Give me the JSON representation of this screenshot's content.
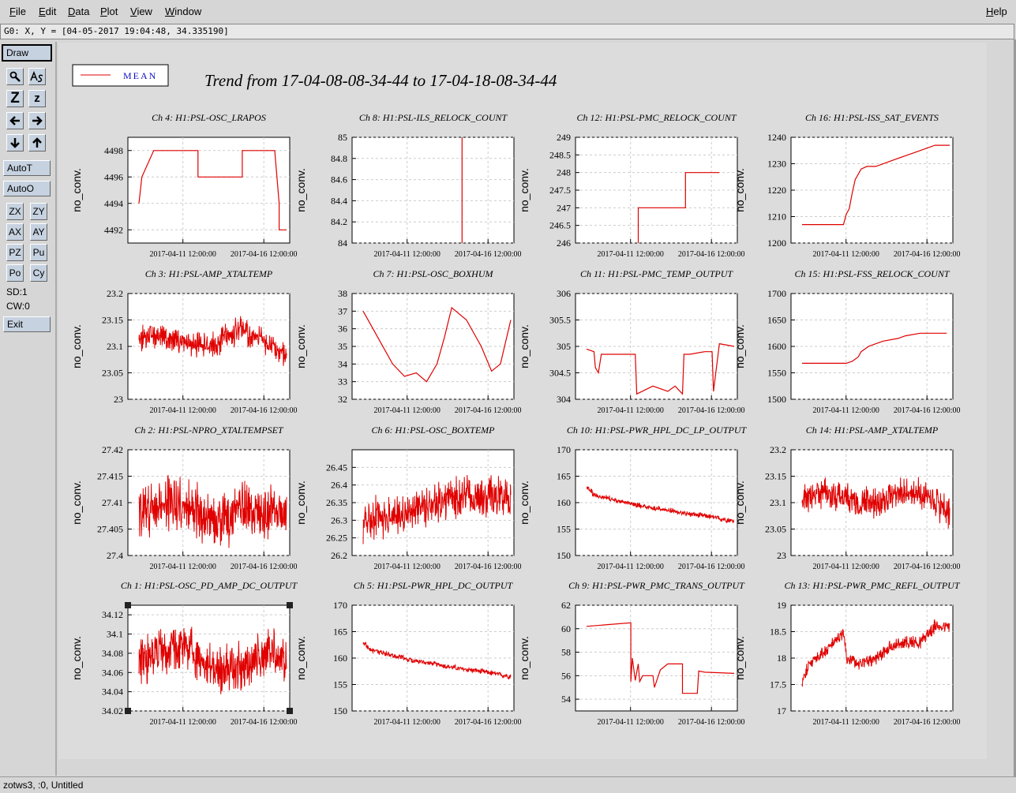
{
  "menubar": {
    "items": [
      {
        "label": "File",
        "underline": "F",
        "rest": "ile"
      },
      {
        "label": "Edit",
        "underline": "E",
        "rest": "dit"
      },
      {
        "label": "Data",
        "underline": "D",
        "rest": "ata"
      },
      {
        "label": "Plot",
        "underline": "P",
        "rest": "lot"
      },
      {
        "label": "View",
        "underline": "V",
        "rest": "iew"
      },
      {
        "label": "Window",
        "underline": "W",
        "rest": "indow"
      }
    ],
    "help": {
      "label": "Help",
      "underline": "H",
      "rest": "elp"
    }
  },
  "coord_readout": "G0: X, Y = [04-05-2017 19:04:48, 34.335190]",
  "toolbox": {
    "draw": "Draw",
    "zoom_z_big": "Z",
    "zoom_z_small": "z",
    "autot": "AutoT",
    "autoo": "AutoO",
    "zx": "ZX",
    "zy": "ZY",
    "ax": "AX",
    "ay": "AY",
    "pz": "PZ",
    "pu": "Pu",
    "po": "Po",
    "cy": "Cy",
    "sd": "SD:1",
    "cw": "CW:0",
    "exit": "Exit"
  },
  "status": "zotws3, :0, Untitled",
  "figure": {
    "legend_label": "MEAN",
    "title": "Trend from 17-04-08-08-34-44 to 17-04-18-08-34-44"
  },
  "chart_data": [
    {
      "type": "line",
      "title": "Ch 4: H1:PSL-OSC_LRAPOS",
      "ylabel": "no_conv.",
      "ylim": [
        4491,
        4499
      ],
      "yticks": [
        4492,
        4494,
        4496,
        4498
      ],
      "xticks": [
        "2017-04-11 12:00:00",
        "2017-04-16 12:00:00"
      ],
      "x": [
        0.0,
        0.02,
        0.02,
        0.1,
        0.4,
        0.4,
        0.7,
        0.7,
        0.92,
        0.95,
        0.95,
        1.0
      ],
      "y": [
        4494,
        4496,
        4496,
        4498,
        4498,
        4496,
        4496,
        4498,
        4498,
        4494,
        4492,
        4492
      ]
    },
    {
      "type": "line",
      "title": "Ch 8: H1:PSL-ILS_RELOCK_COUNT",
      "ylabel": "no_conv.",
      "ylim": [
        84,
        85
      ],
      "yticks": [
        84,
        84.2,
        84.4,
        84.6,
        84.8,
        85
      ],
      "xticks": [
        "2017-04-11 12:00:00",
        "2017-04-16 12:00:00"
      ],
      "x": [
        0.67,
        0.67
      ],
      "y": [
        84,
        85
      ]
    },
    {
      "type": "line",
      "title": "Ch 12: H1:PSL-PMC_RELOCK_COUNT",
      "ylabel": "no_conv.",
      "ylim": [
        246,
        249
      ],
      "yticks": [
        246,
        246.5,
        247,
        247.5,
        248,
        248.5,
        249
      ],
      "xticks": [
        "2017-04-11 12:00:00",
        "2017-04-16 12:00:00"
      ],
      "x": [
        0.35,
        0.35,
        0.67,
        0.67,
        0.9
      ],
      "y": [
        246,
        247,
        247,
        248,
        248
      ]
    },
    {
      "type": "line",
      "title": "Ch 16: H1:PSL-ISS_SAT_EVENTS",
      "ylabel": "no_conv.",
      "ylim": [
        1200,
        1240
      ],
      "yticks": [
        1200,
        1210,
        1220,
        1230,
        1240
      ],
      "xticks": [
        "2017-04-11 12:00:00",
        "2017-04-16 12:00:00"
      ],
      "x": [
        0.0,
        0.28,
        0.3,
        0.32,
        0.34,
        0.36,
        0.38,
        0.4,
        0.44,
        0.5,
        0.6,
        0.7,
        0.8,
        0.9,
        1.0
      ],
      "y": [
        1207,
        1207,
        1211,
        1213,
        1219,
        1224,
        1226,
        1228,
        1229,
        1229,
        1231,
        1233,
        1235,
        1237,
        1237
      ]
    },
    {
      "type": "line",
      "title": "Ch 3: H1:PSL-AMP_XTALTEMP",
      "ylabel": "no_conv.",
      "ylim": [
        23,
        23.2
      ],
      "yticks": [
        23,
        23.05,
        23.1,
        23.15,
        23.2
      ],
      "xticks": [
        "2017-04-11 12:00:00",
        "2017-04-16 12:00:00"
      ],
      "noisy": true,
      "noise": 0.03,
      "x": [
        0,
        0.1,
        0.3,
        0.5,
        0.6,
        0.7,
        0.85,
        0.95,
        1
      ],
      "y": [
        23.11,
        23.12,
        23.11,
        23.1,
        23.12,
        23.13,
        23.11,
        23.09,
        23.08
      ]
    },
    {
      "type": "line",
      "title": "Ch 7: H1:PSL-OSC_BOXHUM",
      "ylabel": "no_conv.",
      "ylim": [
        32,
        38
      ],
      "yticks": [
        32,
        33,
        34,
        35,
        36,
        37,
        38
      ],
      "xticks": [
        "2017-04-11 12:00:00",
        "2017-04-16 12:00:00"
      ],
      "x": [
        0,
        0.1,
        0.2,
        0.28,
        0.36,
        0.43,
        0.5,
        0.55,
        0.6,
        0.7,
        0.8,
        0.87,
        0.93,
        1
      ],
      "y": [
        37,
        35.5,
        34,
        33.3,
        33.5,
        33,
        34,
        35.5,
        37.2,
        36.5,
        35,
        33.6,
        34,
        36.5
      ]
    },
    {
      "type": "line",
      "title": "Ch 11: H1:PSL-PMC_TEMP_OUTPUT",
      "ylabel": "no_conv.",
      "ylim": [
        304,
        306
      ],
      "yticks": [
        304,
        304.5,
        305,
        305.5,
        306
      ],
      "xticks": [
        "2017-04-11 12:00:00",
        "2017-04-16 12:00:00"
      ],
      "x": [
        0,
        0.05,
        0.06,
        0.08,
        0.1,
        0.3,
        0.33,
        0.34,
        0.45,
        0.55,
        0.6,
        0.65,
        0.66,
        0.7,
        0.8,
        0.85,
        0.86,
        0.9,
        1
      ],
      "y": [
        304.95,
        304.9,
        304.6,
        304.5,
        304.85,
        304.85,
        304.85,
        304.1,
        304.25,
        304.15,
        304.25,
        304.1,
        304.85,
        304.85,
        304.9,
        304.9,
        304.15,
        305.05,
        305.0
      ]
    },
    {
      "type": "line",
      "title": "Ch 15: H1:PSL-FSS_RELOCK_COUNT",
      "ylabel": "no_conv.",
      "ylim": [
        1500,
        1700
      ],
      "yticks": [
        1500,
        1550,
        1600,
        1650,
        1700
      ],
      "xticks": [
        "2017-04-11 12:00:00",
        "2017-04-16 12:00:00"
      ],
      "x": [
        0,
        0.3,
        0.34,
        0.38,
        0.4,
        0.45,
        0.5,
        0.55,
        0.65,
        0.7,
        0.8,
        0.98
      ],
      "y": [
        1568,
        1568,
        1572,
        1580,
        1590,
        1600,
        1605,
        1610,
        1615,
        1620,
        1625,
        1625
      ]
    },
    {
      "type": "line",
      "title": "Ch 2: H1:PSL-NPRO_XTALTEMPSET",
      "ylabel": "no_conv.",
      "ylim": [
        27.4,
        27.42
      ],
      "yticks": [
        27.4,
        27.405,
        27.41,
        27.415,
        27.42
      ],
      "xticks": [
        "2017-04-11 12:00:00",
        "2017-04-16 12:00:00"
      ],
      "noisy": true,
      "noise": 0.006,
      "x": [
        0,
        0.15,
        0.3,
        0.45,
        0.55,
        0.7,
        0.85,
        1
      ],
      "y": [
        27.408,
        27.41,
        27.41,
        27.407,
        27.406,
        27.409,
        27.408,
        27.409
      ]
    },
    {
      "type": "line",
      "title": "Ch 6: H1:PSL-OSC_BOXTEMP",
      "ylabel": "no_conv.",
      "ylim": [
        26.2,
        26.5
      ],
      "yticks": [
        26.2,
        26.25,
        26.3,
        26.35,
        26.4,
        26.45
      ],
      "xticks": [
        "2017-04-11 12:00:00",
        "2017-04-16 12:00:00"
      ],
      "noisy": true,
      "noise": 0.07,
      "x": [
        0,
        0.2,
        0.35,
        0.5,
        0.6,
        0.75,
        0.9,
        1
      ],
      "y": [
        26.3,
        26.31,
        26.33,
        26.35,
        26.37,
        26.36,
        26.37,
        26.36
      ]
    },
    {
      "type": "line",
      "title": "Ch 10: H1:PSL-PWR_HPL_DC_LP_OUTPUT",
      "ylabel": "no_conv.",
      "ylim": [
        150,
        170
      ],
      "yticks": [
        150,
        155,
        160,
        165,
        170
      ],
      "xticks": [
        "2017-04-11 12:00:00",
        "2017-04-16 12:00:00"
      ],
      "noisy": true,
      "noise": 0.6,
      "x": [
        0,
        0.05,
        0.2,
        0.35,
        0.5,
        0.65,
        0.8,
        1
      ],
      "y": [
        163,
        161.5,
        160.5,
        159.5,
        158.8,
        158,
        157.5,
        156.5
      ]
    },
    {
      "type": "line",
      "title": "Ch 14: H1:PSL-AMP_XTALTEMP",
      "ylabel": "no_conv.",
      "ylim": [
        23,
        23.2
      ],
      "yticks": [
        23,
        23.05,
        23.1,
        23.15,
        23.2
      ],
      "xticks": [
        "2017-04-11 12:00:00",
        "2017-04-16 12:00:00"
      ],
      "noisy": true,
      "noise": 0.035,
      "x": [
        0,
        0.1,
        0.3,
        0.5,
        0.6,
        0.75,
        0.85,
        0.95,
        1
      ],
      "y": [
        23.11,
        23.12,
        23.11,
        23.1,
        23.11,
        23.12,
        23.11,
        23.09,
        23.08
      ]
    },
    {
      "type": "line",
      "title": "Ch 1: H1:PSL-OSC_PD_AMP_DC_OUTPUT",
      "ylabel": "no_conv.",
      "ylim": [
        34.02,
        34.13
      ],
      "yticks": [
        34.02,
        34.04,
        34.06,
        34.08,
        34.1,
        34.12
      ],
      "xticks": [
        "2017-04-11 12:00:00",
        "2017-04-16 12:00:00"
      ],
      "noisy": true,
      "noise": 0.03,
      "selected": true,
      "x": [
        0,
        0.15,
        0.3,
        0.45,
        0.6,
        0.75,
        0.9,
        1
      ],
      "y": [
        34.07,
        34.08,
        34.09,
        34.07,
        34.06,
        34.07,
        34.08,
        34.07
      ]
    },
    {
      "type": "line",
      "title": "Ch 5: H1:PSL-PWR_HPL_DC_OUTPUT",
      "ylabel": "no_conv.",
      "ylim": [
        150,
        170
      ],
      "yticks": [
        150,
        155,
        160,
        165,
        170
      ],
      "xticks": [
        "2017-04-11 12:00:00",
        "2017-04-16 12:00:00"
      ],
      "noisy": true,
      "noise": 0.6,
      "x": [
        0,
        0.05,
        0.2,
        0.35,
        0.5,
        0.65,
        0.8,
        1
      ],
      "y": [
        163,
        161.5,
        160.5,
        159.5,
        158.8,
        158,
        157.5,
        156.5
      ]
    },
    {
      "type": "line",
      "title": "Ch 9: H1:PSL-PWR_PMC_TRANS_OUTPUT",
      "ylabel": "no_conv.",
      "ylim": [
        53,
        62
      ],
      "yticks": [
        54,
        56,
        58,
        60,
        62
      ],
      "xticks": [
        "2017-04-11 12:00:00",
        "2017-04-16 12:00:00"
      ],
      "x": [
        0,
        0.3,
        0.3,
        0.31,
        0.33,
        0.35,
        0.36,
        0.38,
        0.45,
        0.46,
        0.5,
        0.55,
        0.6,
        0.65,
        0.65,
        0.66,
        0.75,
        0.76,
        0.8,
        1
      ],
      "y": [
        60.2,
        60.5,
        55.5,
        57.5,
        55.6,
        57,
        55.5,
        56,
        56,
        55,
        56.5,
        57,
        57,
        57,
        54.5,
        54.5,
        54.5,
        56.4,
        56.3,
        56.2
      ]
    },
    {
      "type": "line",
      "title": "Ch 13: H1:PSL-PWR_PMC_REFL_OUTPUT",
      "ylabel": "no_conv.",
      "ylim": [
        17,
        19
      ],
      "yticks": [
        17,
        17.5,
        18,
        18.5,
        19
      ],
      "xticks": [
        "2017-04-11 12:00:00",
        "2017-04-16 12:00:00"
      ],
      "noisy": true,
      "noise": 0.15,
      "x": [
        0,
        0.05,
        0.15,
        0.28,
        0.3,
        0.4,
        0.5,
        0.6,
        0.7,
        0.8,
        0.9,
        1
      ],
      "y": [
        17.5,
        17.9,
        18.1,
        18.5,
        18.0,
        17.9,
        18.0,
        18.2,
        18.3,
        18.3,
        18.6,
        18.6
      ]
    }
  ]
}
